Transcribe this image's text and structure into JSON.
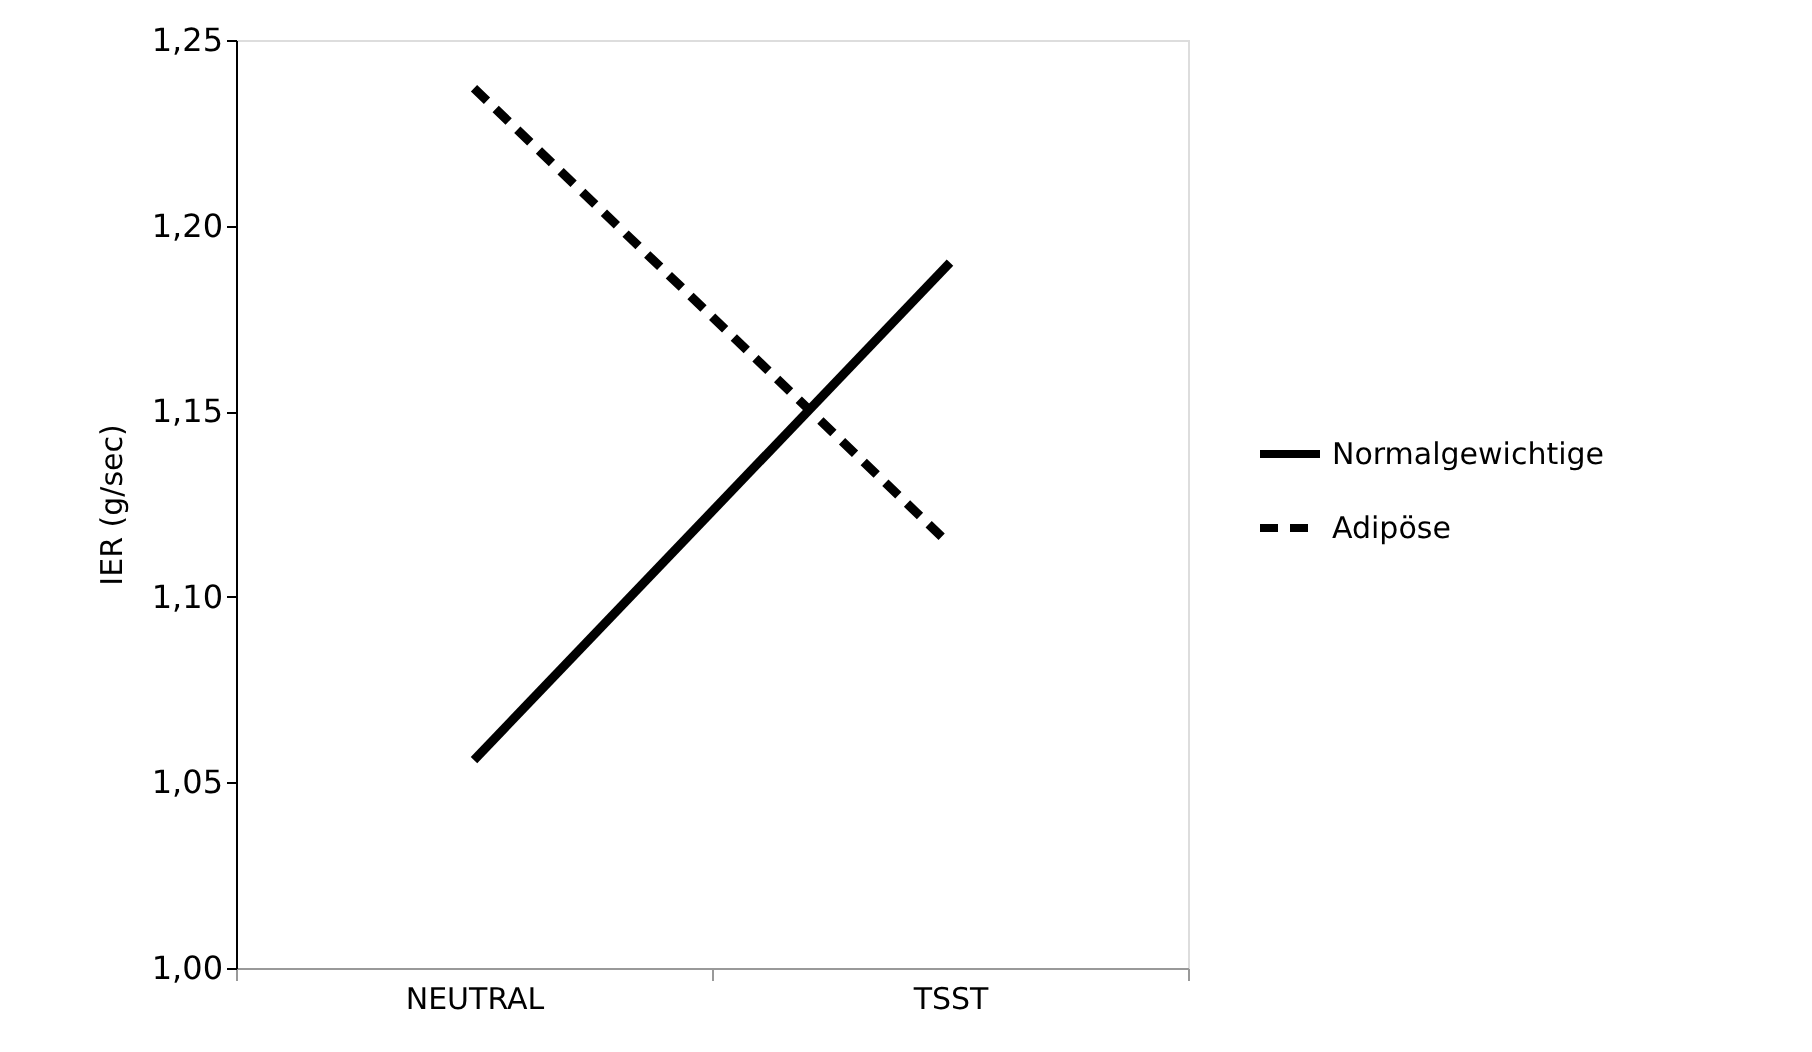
{
  "chart_data": {
    "type": "line",
    "ylabel": "IER (g/sec)",
    "categories": [
      "NEUTRAL",
      "TSST"
    ],
    "series": [
      {
        "name": "Normalgewichtige",
        "color": "#000000",
        "line_style": "solid",
        "values": [
          1.056,
          1.19
        ]
      },
      {
        "name": "Adipöse",
        "color": "#000000",
        "line_style": "dashed",
        "values": [
          1.237,
          1.114
        ]
      }
    ],
    "ylim": [
      1.0,
      1.25
    ],
    "yticks": [
      {
        "value": 1.0,
        "label": "1,00"
      },
      {
        "value": 1.05,
        "label": "1,05"
      },
      {
        "value": 1.1,
        "label": "1,10"
      },
      {
        "value": 1.15,
        "label": "1,15"
      },
      {
        "value": 1.2,
        "label": "1,20"
      },
      {
        "value": 1.25,
        "label": "1,25"
      }
    ],
    "grid": false,
    "legend": "right",
    "marker": "none"
  }
}
